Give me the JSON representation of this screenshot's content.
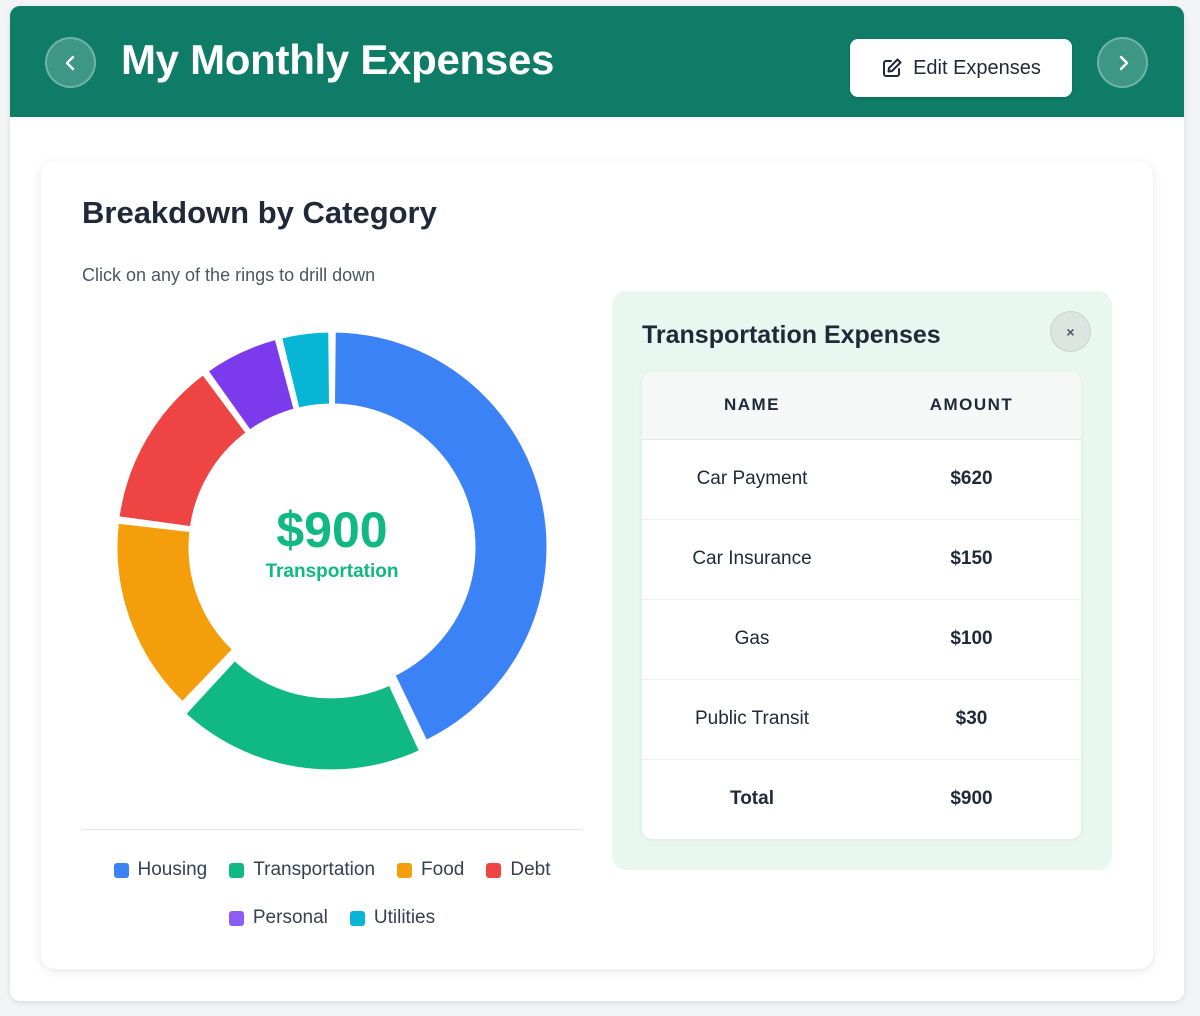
{
  "header": {
    "title": "My Monthly Expenses",
    "edit_label": "Edit Expenses",
    "prev_icon": "chevron-left-icon",
    "next_icon": "chevron-right-icon",
    "edit_icon": "edit-icon",
    "color": "#0e7c66"
  },
  "breakdown": {
    "title": "Breakdown by Category",
    "subtitle": "Click on any of the rings to drill down",
    "center_value": "$900",
    "center_label": "Transportation"
  },
  "chart_data": {
    "type": "pie",
    "donut": true,
    "categories": [
      "Housing",
      "Transportation",
      "Food",
      "Debt",
      "Personal",
      "Utilities"
    ],
    "values": [
      43,
      19,
      15,
      13,
      6,
      4
    ],
    "colors": [
      "#3b82f6",
      "#10b981",
      "#f59e0b",
      "#ef4444",
      "#7c3aed",
      "#06b6d4"
    ],
    "selected": "Transportation",
    "legend_position": "bottom"
  },
  "legend": [
    {
      "label": "Housing",
      "color": "#3b82f6"
    },
    {
      "label": "Transportation",
      "color": "#10b981"
    },
    {
      "label": "Food",
      "color": "#f59e0b"
    },
    {
      "label": "Debt",
      "color": "#ef4444"
    },
    {
      "label": "Personal",
      "color": "#8b5cf6"
    },
    {
      "label": "Utilities",
      "color": "#06b6d4"
    }
  ],
  "detail": {
    "title": "Transportation Expenses",
    "close_label": "×",
    "columns": [
      "NAME",
      "AMOUNT"
    ],
    "rows": [
      {
        "name": "Car Payment",
        "amount": "$620"
      },
      {
        "name": "Car Insurance",
        "amount": "$150"
      },
      {
        "name": "Gas",
        "amount": "$100"
      },
      {
        "name": "Public Transit",
        "amount": "$30"
      }
    ],
    "total": {
      "name": "Total",
      "amount": "$900"
    }
  }
}
